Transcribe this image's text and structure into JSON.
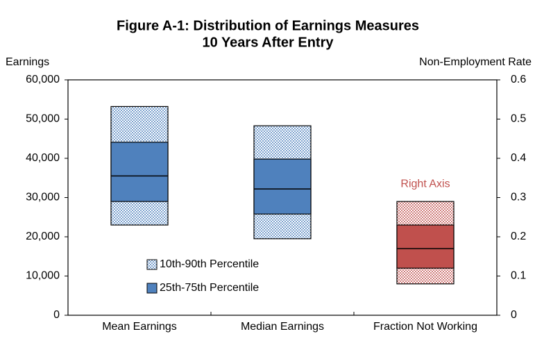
{
  "chart_data": {
    "type": "percentile_box",
    "title": [
      "Figure A-1: Distribution of Earnings Measures",
      "10 Years After Entry"
    ],
    "y_label": "Earnings",
    "y2_label": "Non-Employment Rate",
    "categories": [
      "Mean Earnings",
      "Median Earnings",
      "Fraction Not Working"
    ],
    "axis": [
      "y",
      "y",
      "y2"
    ],
    "colors": [
      "#4f81bd",
      "#4f81bd",
      "#c0504d"
    ],
    "series": [
      {
        "name": "10th-90th Percentile",
        "color": "#4f81bd",
        "low": [
          23000,
          19500,
          0.08
        ],
        "high": [
          53200,
          48300,
          0.29
        ]
      },
      {
        "name": "25th-75th Percentile",
        "color": "#4f81bd",
        "low": [
          29000,
          25800,
          0.12
        ],
        "high": [
          44100,
          39800,
          0.23
        ]
      }
    ],
    "medians": [
      35500,
      32200,
      0.17
    ],
    "annotation": {
      "text": "Right Axis",
      "category": 2,
      "color": "#c0504d"
    },
    "ylim": [
      0,
      60000
    ],
    "yticks": [
      0,
      {
        "value": 10000,
        "label": "10,000"
      },
      {
        "value": 20000,
        "label": "20,000"
      },
      {
        "value": 30000,
        "label": "30,000"
      },
      {
        "value": 40000,
        "label": "40,000"
      },
      {
        "value": 50000,
        "label": "50,000"
      },
      {
        "value": 60000,
        "label": "60,000"
      }
    ],
    "y2lim": [
      0,
      0.6
    ],
    "y2ticks": [
      0,
      0.1,
      0.2,
      0.3,
      0.4,
      0.5,
      0.6
    ]
  }
}
